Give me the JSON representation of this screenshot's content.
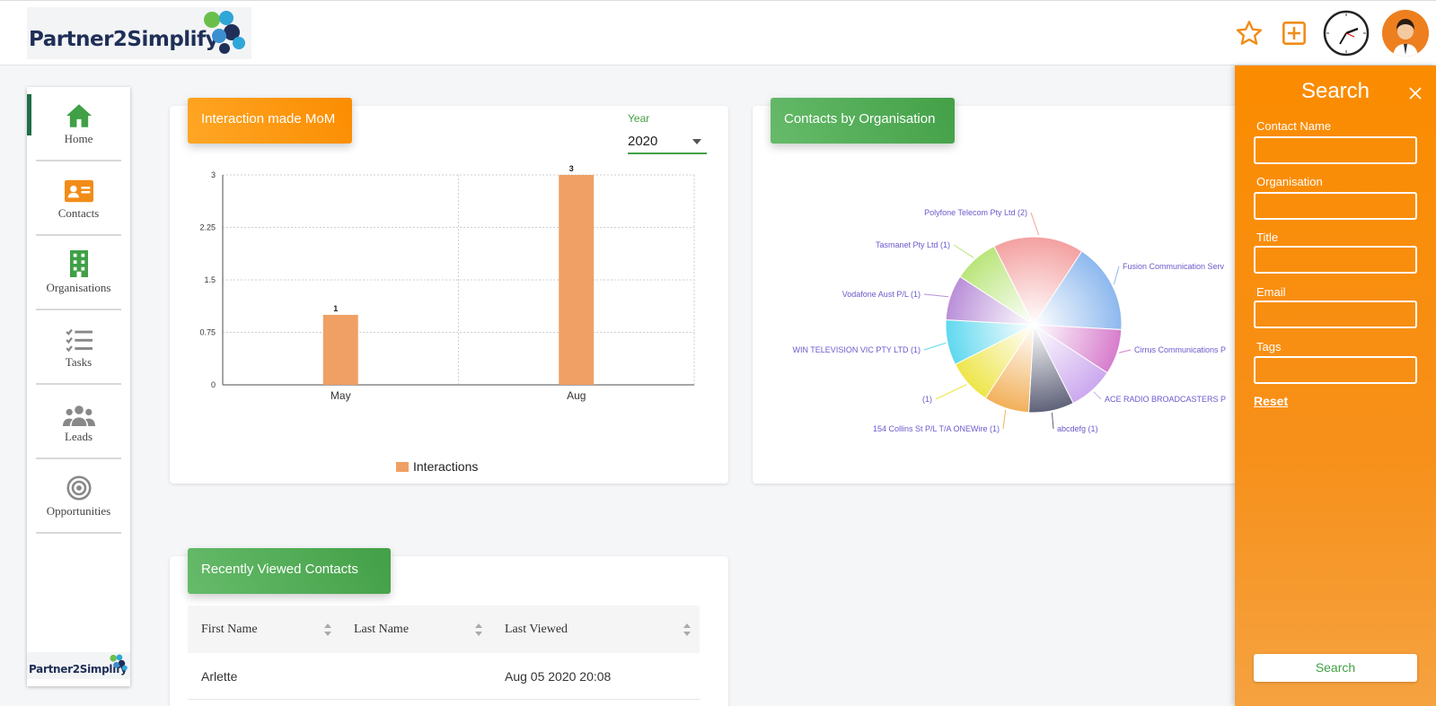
{
  "app": {
    "brand": "Partner2Simplify"
  },
  "nav": {
    "items": [
      {
        "label": "Home",
        "icon": "home-icon"
      },
      {
        "label": "Contacts",
        "icon": "contact-card-icon"
      },
      {
        "label": "Organisations",
        "icon": "building-icon"
      },
      {
        "label": "Tasks",
        "icon": "task-list-icon"
      },
      {
        "label": "Leads",
        "icon": "people-group-icon"
      },
      {
        "label": "Opportunities",
        "icon": "target-icon"
      }
    ]
  },
  "interactions": {
    "title": "Interaction made MoM",
    "year_label": "Year",
    "year_value": "2020",
    "legend": "Interactions"
  },
  "contacts_by_org": {
    "title": "Contacts by Organisation"
  },
  "recent": {
    "title": "Recently Viewed Contacts",
    "columns": [
      "First Name",
      "Last Name",
      "Last Viewed"
    ],
    "rows": [
      {
        "first": "Arlette",
        "last": "",
        "viewed": "Aug 05 2020 20:08"
      }
    ]
  },
  "search": {
    "title": "Search",
    "fields": [
      "Contact Name",
      "Organisation",
      "Title",
      "Email",
      "Tags"
    ],
    "reset": "Reset",
    "button": "Search"
  },
  "colors": {
    "orange": "#fb8c00",
    "green": "#43a047",
    "bar": "#f0a064",
    "pie_label": "#6a5acd"
  },
  "chart_data": [
    {
      "type": "bar",
      "categories": [
        "May",
        "Aug"
      ],
      "series": [
        {
          "name": "Interactions",
          "values": [
            1,
            3
          ]
        }
      ],
      "ylim": [
        0,
        3
      ],
      "yticks": [
        "0",
        "0.75",
        "1.5",
        "2.25",
        "3"
      ],
      "data_labels": [
        "1",
        "3"
      ],
      "grid": true,
      "legend": "bottom"
    },
    {
      "type": "pie",
      "slices": [
        {
          "label": "Fusion Communication Serv",
          "value": 2,
          "color": "#8db8ee"
        },
        {
          "label": "Cirrus Communications P",
          "value": 1,
          "color": "#d77ccc"
        },
        {
          "label": "ACE RADIO BROADCASTERS P",
          "value": 1,
          "color": "#cba8ee"
        },
        {
          "label": "abcdefg (1)",
          "value": 1,
          "color": "#5e6178"
        },
        {
          "label": "154 Collins St P/L T/A ONEWire (1)",
          "value": 1,
          "color": "#f2b05a"
        },
        {
          "label": "(1)",
          "value": 1,
          "color": "#eee54a"
        },
        {
          "label": "WIN TELEVISION VIC PTY LTD (1)",
          "value": 1,
          "color": "#5fd8ef"
        },
        {
          "label": "Vodafone Aust P/L (1)",
          "value": 1,
          "color": "#b98fd8"
        },
        {
          "label": "Tasmanet Pty Ltd (1)",
          "value": 1,
          "color": "#b9e57a"
        },
        {
          "label": "Polyfone Telecom Pty Ltd (2)",
          "value": 2,
          "color": "#f4a0a0"
        }
      ]
    }
  ]
}
